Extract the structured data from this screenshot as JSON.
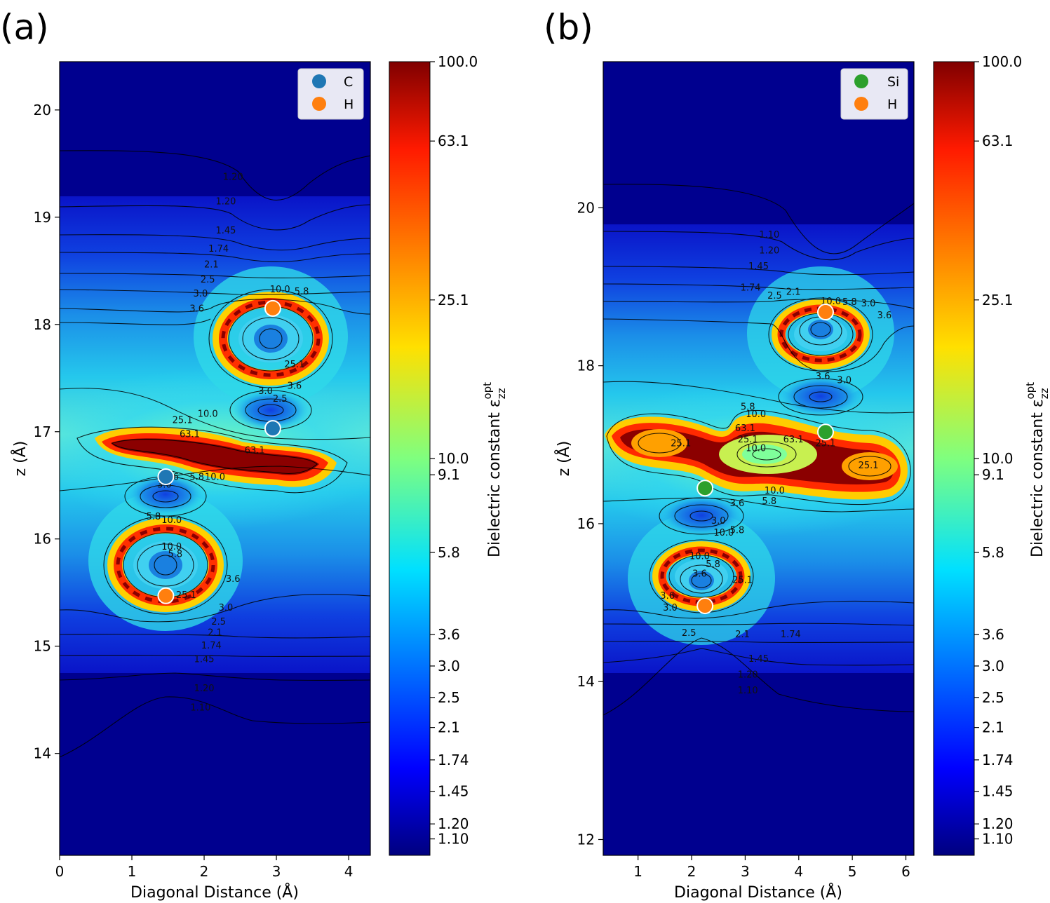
{
  "figure": {
    "panels": [
      {
        "tag": "(a)",
        "xlabel": "Diagonal Distance (Å)",
        "ylabel": "z (Å)",
        "colorbar_label": "Dielectric constant ε",
        "colorbar_sub": "zz",
        "colorbar_sup": "opt",
        "legend": [
          {
            "label": "C",
            "color": "#1f77b4"
          },
          {
            "label": "H",
            "color": "#ff7f0e"
          }
        ]
      },
      {
        "tag": "(b)",
        "xlabel": "Diagonal Distance (Å)",
        "ylabel": "z (Å)",
        "colorbar_label": "Dielectric constant ε",
        "colorbar_sub": "zz",
        "colorbar_sup": "opt",
        "legend": [
          {
            "label": "Si",
            "color": "#2ca02c"
          },
          {
            "label": "H",
            "color": "#ff7f0e"
          }
        ]
      }
    ]
  },
  "chart_data": [
    {
      "type": "heatmap",
      "panel": "(a)",
      "xlabel": "Diagonal Distance (Å)",
      "ylabel": "z (Å)",
      "xlim": [
        0,
        4.3
      ],
      "ylim": [
        13.05,
        20.45
      ],
      "xticks": [
        0,
        1,
        2,
        3,
        4
      ],
      "yticks": [
        14,
        15,
        16,
        17,
        18,
        19,
        20
      ],
      "colorbar": {
        "scale": "log",
        "range": [
          1.0,
          100.0
        ],
        "ticks": [
          "100.0",
          "63.1",
          "25.1",
          "10.0",
          "9.1",
          "5.8",
          "3.6",
          "3.0",
          "2.5",
          "2.1",
          "1.74",
          "1.45",
          "1.20",
          "1.10"
        ],
        "colormap": "jet"
      },
      "atoms": [
        {
          "species": "C",
          "x": 2.95,
          "z": 17.03
        },
        {
          "species": "C",
          "x": 1.47,
          "z": 16.58
        },
        {
          "species": "H",
          "x": 2.95,
          "z": 18.15
        },
        {
          "species": "H",
          "x": 1.47,
          "z": 15.47
        }
      ],
      "contour_labels": [
        {
          "text": "1.20",
          "x": 2.4,
          "z": 19.35
        },
        {
          "text": "1.20",
          "x": 2.3,
          "z": 19.12
        },
        {
          "text": "1.45",
          "x": 2.3,
          "z": 18.85
        },
        {
          "text": "1.74",
          "x": 2.2,
          "z": 18.68
        },
        {
          "text": "2.1",
          "x": 2.1,
          "z": 18.53
        },
        {
          "text": "2.5",
          "x": 2.05,
          "z": 18.39
        },
        {
          "text": "3.0",
          "x": 1.95,
          "z": 18.26
        },
        {
          "text": "3.6",
          "x": 1.9,
          "z": 18.12
        },
        {
          "text": "10.0",
          "x": 3.05,
          "z": 18.3
        },
        {
          "text": "5.8",
          "x": 3.35,
          "z": 18.28
        },
        {
          "text": "25.1",
          "x": 3.25,
          "z": 17.6
        },
        {
          "text": "3.0",
          "x": 2.85,
          "z": 17.35
        },
        {
          "text": "3.6",
          "x": 3.25,
          "z": 17.4
        },
        {
          "text": "2.5",
          "x": 3.05,
          "z": 17.28
        },
        {
          "text": "10.0",
          "x": 2.05,
          "z": 17.14
        },
        {
          "text": "25.1",
          "x": 1.7,
          "z": 17.08
        },
        {
          "text": "63.1",
          "x": 1.8,
          "z": 16.95
        },
        {
          "text": "63.1",
          "x": 2.7,
          "z": 16.8
        },
        {
          "text": "3.6",
          "x": 1.55,
          "z": 16.55
        },
        {
          "text": "5.8",
          "x": 1.9,
          "z": 16.55
        },
        {
          "text": "10.0",
          "x": 2.15,
          "z": 16.55
        },
        {
          "text": "3.0",
          "x": 1.45,
          "z": 16.48
        },
        {
          "text": "5.8",
          "x": 1.3,
          "z": 16.18
        },
        {
          "text": "10.0",
          "x": 1.55,
          "z": 16.15
        },
        {
          "text": "10.0",
          "x": 1.55,
          "z": 15.9
        },
        {
          "text": "5.8",
          "x": 1.6,
          "z": 15.83
        },
        {
          "text": "25.1",
          "x": 1.75,
          "z": 15.45
        },
        {
          "text": "3.6",
          "x": 2.4,
          "z": 15.6
        },
        {
          "text": "3.0",
          "x": 2.3,
          "z": 15.33
        },
        {
          "text": "2.5",
          "x": 2.2,
          "z": 15.2
        },
        {
          "text": "2.1",
          "x": 2.15,
          "z": 15.1
        },
        {
          "text": "1.74",
          "x": 2.1,
          "z": 14.98
        },
        {
          "text": "1.45",
          "x": 2.0,
          "z": 14.85
        },
        {
          "text": "1.20",
          "x": 2.0,
          "z": 14.58
        },
        {
          "text": "1.10",
          "x": 1.95,
          "z": 14.4
        }
      ]
    },
    {
      "type": "heatmap",
      "panel": "(b)",
      "xlabel": "Diagonal Distance (Å)",
      "ylabel": "z (Å)",
      "xlim": [
        0.35,
        6.15
      ],
      "ylim": [
        11.8,
        21.85
      ],
      "xticks": [
        1,
        2,
        3,
        4,
        5,
        6
      ],
      "yticks": [
        12,
        14,
        16,
        18,
        20
      ],
      "colorbar": {
        "scale": "log",
        "range": [
          1.0,
          100.0
        ],
        "ticks": [
          "100.0",
          "63.1",
          "25.1",
          "10.0",
          "9.1",
          "5.8",
          "3.6",
          "3.0",
          "2.5",
          "2.1",
          "1.74",
          "1.45",
          "1.20",
          "1.10"
        ],
        "colormap": "jet"
      },
      "atoms": [
        {
          "species": "Si",
          "x": 4.5,
          "z": 17.16
        },
        {
          "species": "Si",
          "x": 2.25,
          "z": 16.45
        },
        {
          "species": "H",
          "x": 4.5,
          "z": 18.68
        },
        {
          "species": "H",
          "x": 2.25,
          "z": 14.96
        }
      ],
      "contour_labels": [
        {
          "text": "1.10",
          "x": 3.45,
          "z": 19.62
        },
        {
          "text": "1.20",
          "x": 3.45,
          "z": 19.42
        },
        {
          "text": "1.45",
          "x": 3.25,
          "z": 19.22
        },
        {
          "text": "1.74",
          "x": 3.1,
          "z": 18.95
        },
        {
          "text": "2.5",
          "x": 3.55,
          "z": 18.85
        },
        {
          "text": "2.1",
          "x": 3.9,
          "z": 18.9
        },
        {
          "text": "3.0",
          "x": 5.3,
          "z": 18.75
        },
        {
          "text": "3.6",
          "x": 5.6,
          "z": 18.6
        },
        {
          "text": "10.0",
          "x": 4.6,
          "z": 18.78
        },
        {
          "text": "5.8",
          "x": 4.95,
          "z": 18.77
        },
        {
          "text": "3.6",
          "x": 4.45,
          "z": 17.83
        },
        {
          "text": "3.0",
          "x": 4.85,
          "z": 17.78
        },
        {
          "text": "5.8",
          "x": 3.05,
          "z": 17.44
        },
        {
          "text": "10.0",
          "x": 3.2,
          "z": 17.35
        },
        {
          "text": "63.1",
          "x": 3.0,
          "z": 17.17
        },
        {
          "text": "25.1",
          "x": 3.05,
          "z": 17.03
        },
        {
          "text": "63.1",
          "x": 3.9,
          "z": 17.03
        },
        {
          "text": "25.1",
          "x": 4.5,
          "z": 16.98
        },
        {
          "text": "25.1",
          "x": 1.8,
          "z": 16.98
        },
        {
          "text": "10.0",
          "x": 3.2,
          "z": 16.92
        },
        {
          "text": "25.1",
          "x": 5.3,
          "z": 16.7
        },
        {
          "text": "10.0",
          "x": 3.55,
          "z": 16.38
        },
        {
          "text": "5.8",
          "x": 3.45,
          "z": 16.25
        },
        {
          "text": "3.6",
          "x": 2.85,
          "z": 16.22
        },
        {
          "text": "3.0",
          "x": 2.5,
          "z": 16.0
        },
        {
          "text": "10.0",
          "x": 2.6,
          "z": 15.85
        },
        {
          "text": "5.8",
          "x": 2.85,
          "z": 15.88
        },
        {
          "text": "10.0",
          "x": 2.15,
          "z": 15.55
        },
        {
          "text": "5.8",
          "x": 2.4,
          "z": 15.45
        },
        {
          "text": "3.6",
          "x": 2.15,
          "z": 15.33
        },
        {
          "text": "25.1",
          "x": 2.95,
          "z": 15.25
        },
        {
          "text": "3.6",
          "x": 1.55,
          "z": 15.05
        },
        {
          "text": "3.0",
          "x": 1.6,
          "z": 14.9
        },
        {
          "text": "2.5",
          "x": 1.95,
          "z": 14.58
        },
        {
          "text": "2.1",
          "x": 2.95,
          "z": 14.56
        },
        {
          "text": "1.74",
          "x": 3.85,
          "z": 14.56
        },
        {
          "text": "1.45",
          "x": 3.25,
          "z": 14.25
        },
        {
          "text": "1.20",
          "x": 3.05,
          "z": 14.05
        },
        {
          "text": "1.10",
          "x": 3.05,
          "z": 13.85
        }
      ]
    }
  ]
}
